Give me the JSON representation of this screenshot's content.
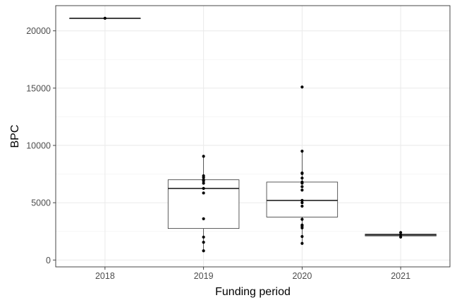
{
  "chart_data": {
    "type": "boxplot",
    "xlabel": "Funding period",
    "ylabel": "BPC",
    "ylim": [
      -600,
      22200
    ],
    "y_ticks": [
      0,
      5000,
      10000,
      15000,
      20000
    ],
    "y_tick_labels": [
      "0",
      "5000",
      "10000",
      "15000",
      "20000"
    ],
    "grid": true,
    "theme": "bw",
    "categories": [
      "2018",
      "2019",
      "2020",
      "2021"
    ],
    "boxes": [
      {
        "category": "2018",
        "q1": 21100,
        "median": 21100,
        "q3": 21100,
        "whisker_low": 21100,
        "whisker_high": 21100
      },
      {
        "category": "2019",
        "q1": 2750,
        "median": 6250,
        "q3": 7000,
        "whisker_low": 800,
        "whisker_high": 9050
      },
      {
        "category": "2020",
        "q1": 3750,
        "median": 5200,
        "q3": 6800,
        "whisker_low": 1450,
        "whisker_high": 9500
      },
      {
        "category": "2021",
        "q1": 2100,
        "median": 2180,
        "q3": 2260,
        "whisker_low": 2000,
        "whisker_high": 2400
      }
    ],
    "points": [
      {
        "category": "2018",
        "values": [
          21100
        ]
      },
      {
        "category": "2019",
        "values": [
          9050,
          7350,
          7200,
          7000,
          6900,
          6700,
          6250,
          5850,
          3600,
          2000,
          1550,
          800
        ]
      },
      {
        "category": "2020",
        "values": [
          15100,
          9500,
          7600,
          7550,
          7150,
          6800,
          6700,
          6400,
          6100,
          5200,
          5000,
          4700,
          3550,
          3050,
          2950,
          2800,
          2050,
          1450
        ]
      },
      {
        "category": "2021",
        "values": [
          2400,
          2200,
          2000
        ]
      }
    ],
    "colors": {
      "box_stroke": "#333333",
      "median": "#333333",
      "point": "#000000",
      "grid_major": "#ebebeb",
      "grid_minor": "#f2f2f2",
      "panel_border": "#333333"
    }
  }
}
